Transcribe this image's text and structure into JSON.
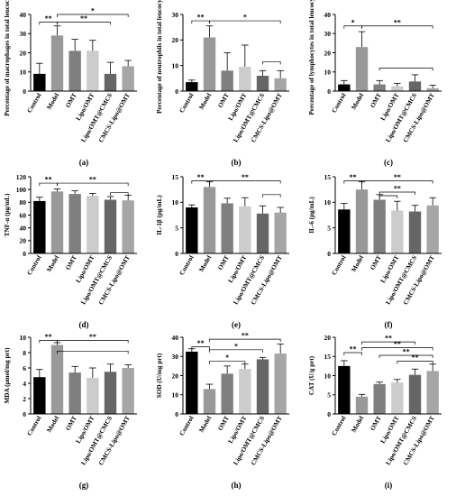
{
  "colors": [
    "#000000",
    "#999999",
    "#7f7f7f",
    "#cccccc",
    "#666666",
    "#a6a6a6"
  ],
  "chart_data": [
    {
      "type": "bar",
      "letter": "(a)",
      "ylabel": "Percentage of macrophages in total leucocytes",
      "categories": [
        "Control",
        "Model",
        "OMT",
        "Lipo/OMT",
        "Lipo/OMT@CMCS",
        "CMCS-Lipo@OMT"
      ],
      "values": [
        9,
        29,
        21,
        21,
        9,
        13
      ],
      "errors": [
        5.5,
        5,
        6,
        5.5,
        6,
        3
      ],
      "ylim": [
        0,
        40
      ],
      "yticks": [
        0,
        10,
        20,
        30,
        40
      ],
      "sig": [
        {
          "a": 0,
          "b": 1,
          "y": 36,
          "t": "**"
        },
        {
          "a": 1,
          "b": 4,
          "y": 36,
          "t": "**"
        },
        {
          "a": 1,
          "b": 5,
          "y": 40,
          "t": "*"
        }
      ]
    },
    {
      "type": "bar",
      "letter": "(b)",
      "ylabel": "Percentage of neutrophils in total leucocytes",
      "categories": [
        "Control",
        "Model",
        "OMT",
        "Lipo/OMT",
        "Lipo/OMT@CMCS",
        "CMCS-Lipo@OMT"
      ],
      "values": [
        3.5,
        21,
        8,
        9.5,
        6,
        5
      ],
      "errors": [
        0.8,
        4.5,
        7,
        8.5,
        2,
        3
      ],
      "ylim": [
        0,
        30
      ],
      "yticks": [
        0,
        10,
        20,
        30
      ],
      "sig": [
        {
          "a": 0,
          "b": 1,
          "y": 27.5,
          "t": "**"
        },
        {
          "a": 1,
          "b": 5,
          "y": 27.5,
          "t": "*"
        },
        {
          "a": 4,
          "b": 5,
          "y": 11.5,
          "t": ""
        }
      ]
    },
    {
      "type": "bar",
      "letter": "(c)",
      "ylabel": "Percentage of lymphocytes in total leucocytes",
      "categories": [
        "Control",
        "Model",
        "OMT",
        "Lipo/OMT",
        "Lipo/OMT@CMCS",
        "CMCS-Lipo@OMT"
      ],
      "values": [
        3.5,
        23,
        3.5,
        2.5,
        5,
        1.5
      ],
      "errors": [
        2,
        8,
        2,
        1.5,
        3.5,
        1.5
      ],
      "ylim": [
        0,
        40
      ],
      "yticks": [
        0,
        10,
        20,
        30,
        40
      ],
      "sig": [
        {
          "a": 0,
          "b": 1,
          "y": 34,
          "t": "*"
        },
        {
          "a": 1,
          "b": 5,
          "y": 34,
          "t": "**"
        },
        {
          "a": 2,
          "b": 5,
          "y": 12,
          "t": ""
        }
      ]
    },
    {
      "type": "bar",
      "letter": "(d)",
      "ylabel": "TNF-α (pg/mL)",
      "categories": [
        "Control",
        "Model",
        "OMT",
        "Lipo/OMT",
        "Lipo/OMT@CMCS",
        "CMCS-Lipo@OMT"
      ],
      "values": [
        82,
        97,
        93,
        90,
        84,
        83
      ],
      "errors": [
        6,
        4,
        5,
        4,
        5,
        8
      ],
      "ylim": [
        0,
        120
      ],
      "yticks": [
        0,
        20,
        40,
        60,
        80,
        100,
        120
      ],
      "sig": [
        {
          "a": 0,
          "b": 1,
          "y": 110,
          "t": "**"
        },
        {
          "a": 1,
          "b": 5,
          "y": 110,
          "t": "**"
        },
        {
          "a": 4,
          "b": 5,
          "y": 95,
          "t": ""
        }
      ]
    },
    {
      "type": "bar",
      "letter": "(e)",
      "ylabel": "IL-1β (pg/mL)",
      "categories": [
        "Control",
        "Model",
        "OMT",
        "Lipo/OMT",
        "Lipo/OMT@CMCS",
        "CMCS-Lipo@OMT"
      ],
      "values": [
        9,
        13,
        9.8,
        9.2,
        7.8,
        8
      ],
      "errors": [
        0.5,
        1,
        1,
        1.7,
        1.5,
        1
      ],
      "ylim": [
        0,
        15
      ],
      "yticks": [
        0,
        5,
        10,
        15
      ],
      "sig": [
        {
          "a": 0,
          "b": 1,
          "y": 14.2,
          "t": "**"
        },
        {
          "a": 1,
          "b": 5,
          "y": 14.2,
          "t": "**"
        },
        {
          "a": 4,
          "b": 5,
          "y": 11.5,
          "t": ""
        }
      ]
    },
    {
      "type": "bar",
      "letter": "(f)",
      "ylabel": "IL-6 (pg/mL)",
      "categories": [
        "Control",
        "Model",
        "OMT",
        "Lipo/OMT",
        "Lipo/OMT@CMCS",
        "CMCS-Lipo@OMT"
      ],
      "values": [
        8.6,
        12.5,
        10.5,
        8.4,
        8.2,
        9.4
      ],
      "errors": [
        1.2,
        1.5,
        1,
        1.8,
        1.2,
        1.5
      ],
      "ylim": [
        0,
        15
      ],
      "yticks": [
        0,
        5,
        10,
        15
      ],
      "sig": [
        {
          "a": 0,
          "b": 1,
          "y": 14.2,
          "t": "**"
        },
        {
          "a": 1,
          "b": 5,
          "y": 14.2,
          "t": "**"
        },
        {
          "a": 2,
          "b": 4,
          "y": 12,
          "t": "**"
        },
        {
          "a": 2,
          "b": 3,
          "y": 11.3,
          "t": ""
        }
      ]
    },
    {
      "type": "bar",
      "letter": "(g)",
      "ylabel": "MDA (μmol/mg prt)",
      "categories": [
        "Control",
        "Model",
        "OMT",
        "Lipo/OMT",
        "Lipo/OMT@CMCS",
        "CMCS-Lipo@OMT"
      ],
      "values": [
        4.8,
        9,
        5.4,
        4.7,
        5.5,
        6
      ],
      "errors": [
        1,
        0.3,
        0.8,
        1.3,
        1,
        0.4
      ],
      "ylim": [
        0,
        10
      ],
      "yticks": [
        0,
        2,
        4,
        6,
        8,
        10
      ],
      "sig": [
        {
          "a": 0,
          "b": 1,
          "y": 9.6,
          "t": "**"
        },
        {
          "a": 1,
          "b": 5,
          "y": 9.6,
          "t": "**"
        },
        {
          "a": 1,
          "b": 5,
          "y": 8.2,
          "t": ""
        }
      ]
    },
    {
      "type": "bar",
      "letter": "(h)",
      "ylabel": "SOD (U/mg prt)",
      "categories": [
        "Control",
        "Model",
        "OMT",
        "Lipo/OMT",
        "Lipo/OMT@CMCS",
        "CMCS-Lipo@OMT"
      ],
      "values": [
        32.5,
        13,
        21,
        23.5,
        28.5,
        31.5
      ],
      "errors": [
        1.5,
        2.5,
        4,
        2.5,
        1,
        5
      ],
      "ylim": [
        0,
        40
      ],
      "yticks": [
        0,
        10,
        20,
        30,
        40
      ],
      "sig": [
        {
          "a": 0,
          "b": 1,
          "y": 35,
          "t": "**"
        },
        {
          "a": 1,
          "b": 5,
          "y": 39,
          "t": "**"
        },
        {
          "a": 1,
          "b": 4,
          "y": 33.5,
          "t": "*"
        },
        {
          "a": 1,
          "b": 3,
          "y": 27.5,
          "t": "*"
        }
      ]
    },
    {
      "type": "bar",
      "letter": "(i)",
      "ylabel": "CAT (U/g prt)",
      "categories": [
        "Control",
        "Model",
        "OMT",
        "Lipo/OMT",
        "Lipo/OMT@CMCS",
        "CMCS-Lipo@OMT"
      ],
      "values": [
        12.5,
        4.5,
        7.8,
        8.2,
        10.2,
        11.2
      ],
      "errors": [
        1.4,
        0.6,
        0.5,
        0.8,
        1.5,
        1.8
      ],
      "ylim": [
        0,
        20
      ],
      "yticks": [
        0,
        5,
        10,
        15,
        20
      ],
      "sig": [
        {
          "a": 0,
          "b": 1,
          "y": 16,
          "t": "**"
        },
        {
          "a": 1,
          "b": 4,
          "y": 18.8,
          "t": "**"
        },
        {
          "a": 1,
          "b": 5,
          "y": 17.3,
          "t": "**"
        },
        {
          "a": 2,
          "b": 5,
          "y": 15.3,
          "t": "**"
        },
        {
          "a": 3,
          "b": 5,
          "y": 13.8,
          "t": "**"
        }
      ]
    }
  ]
}
